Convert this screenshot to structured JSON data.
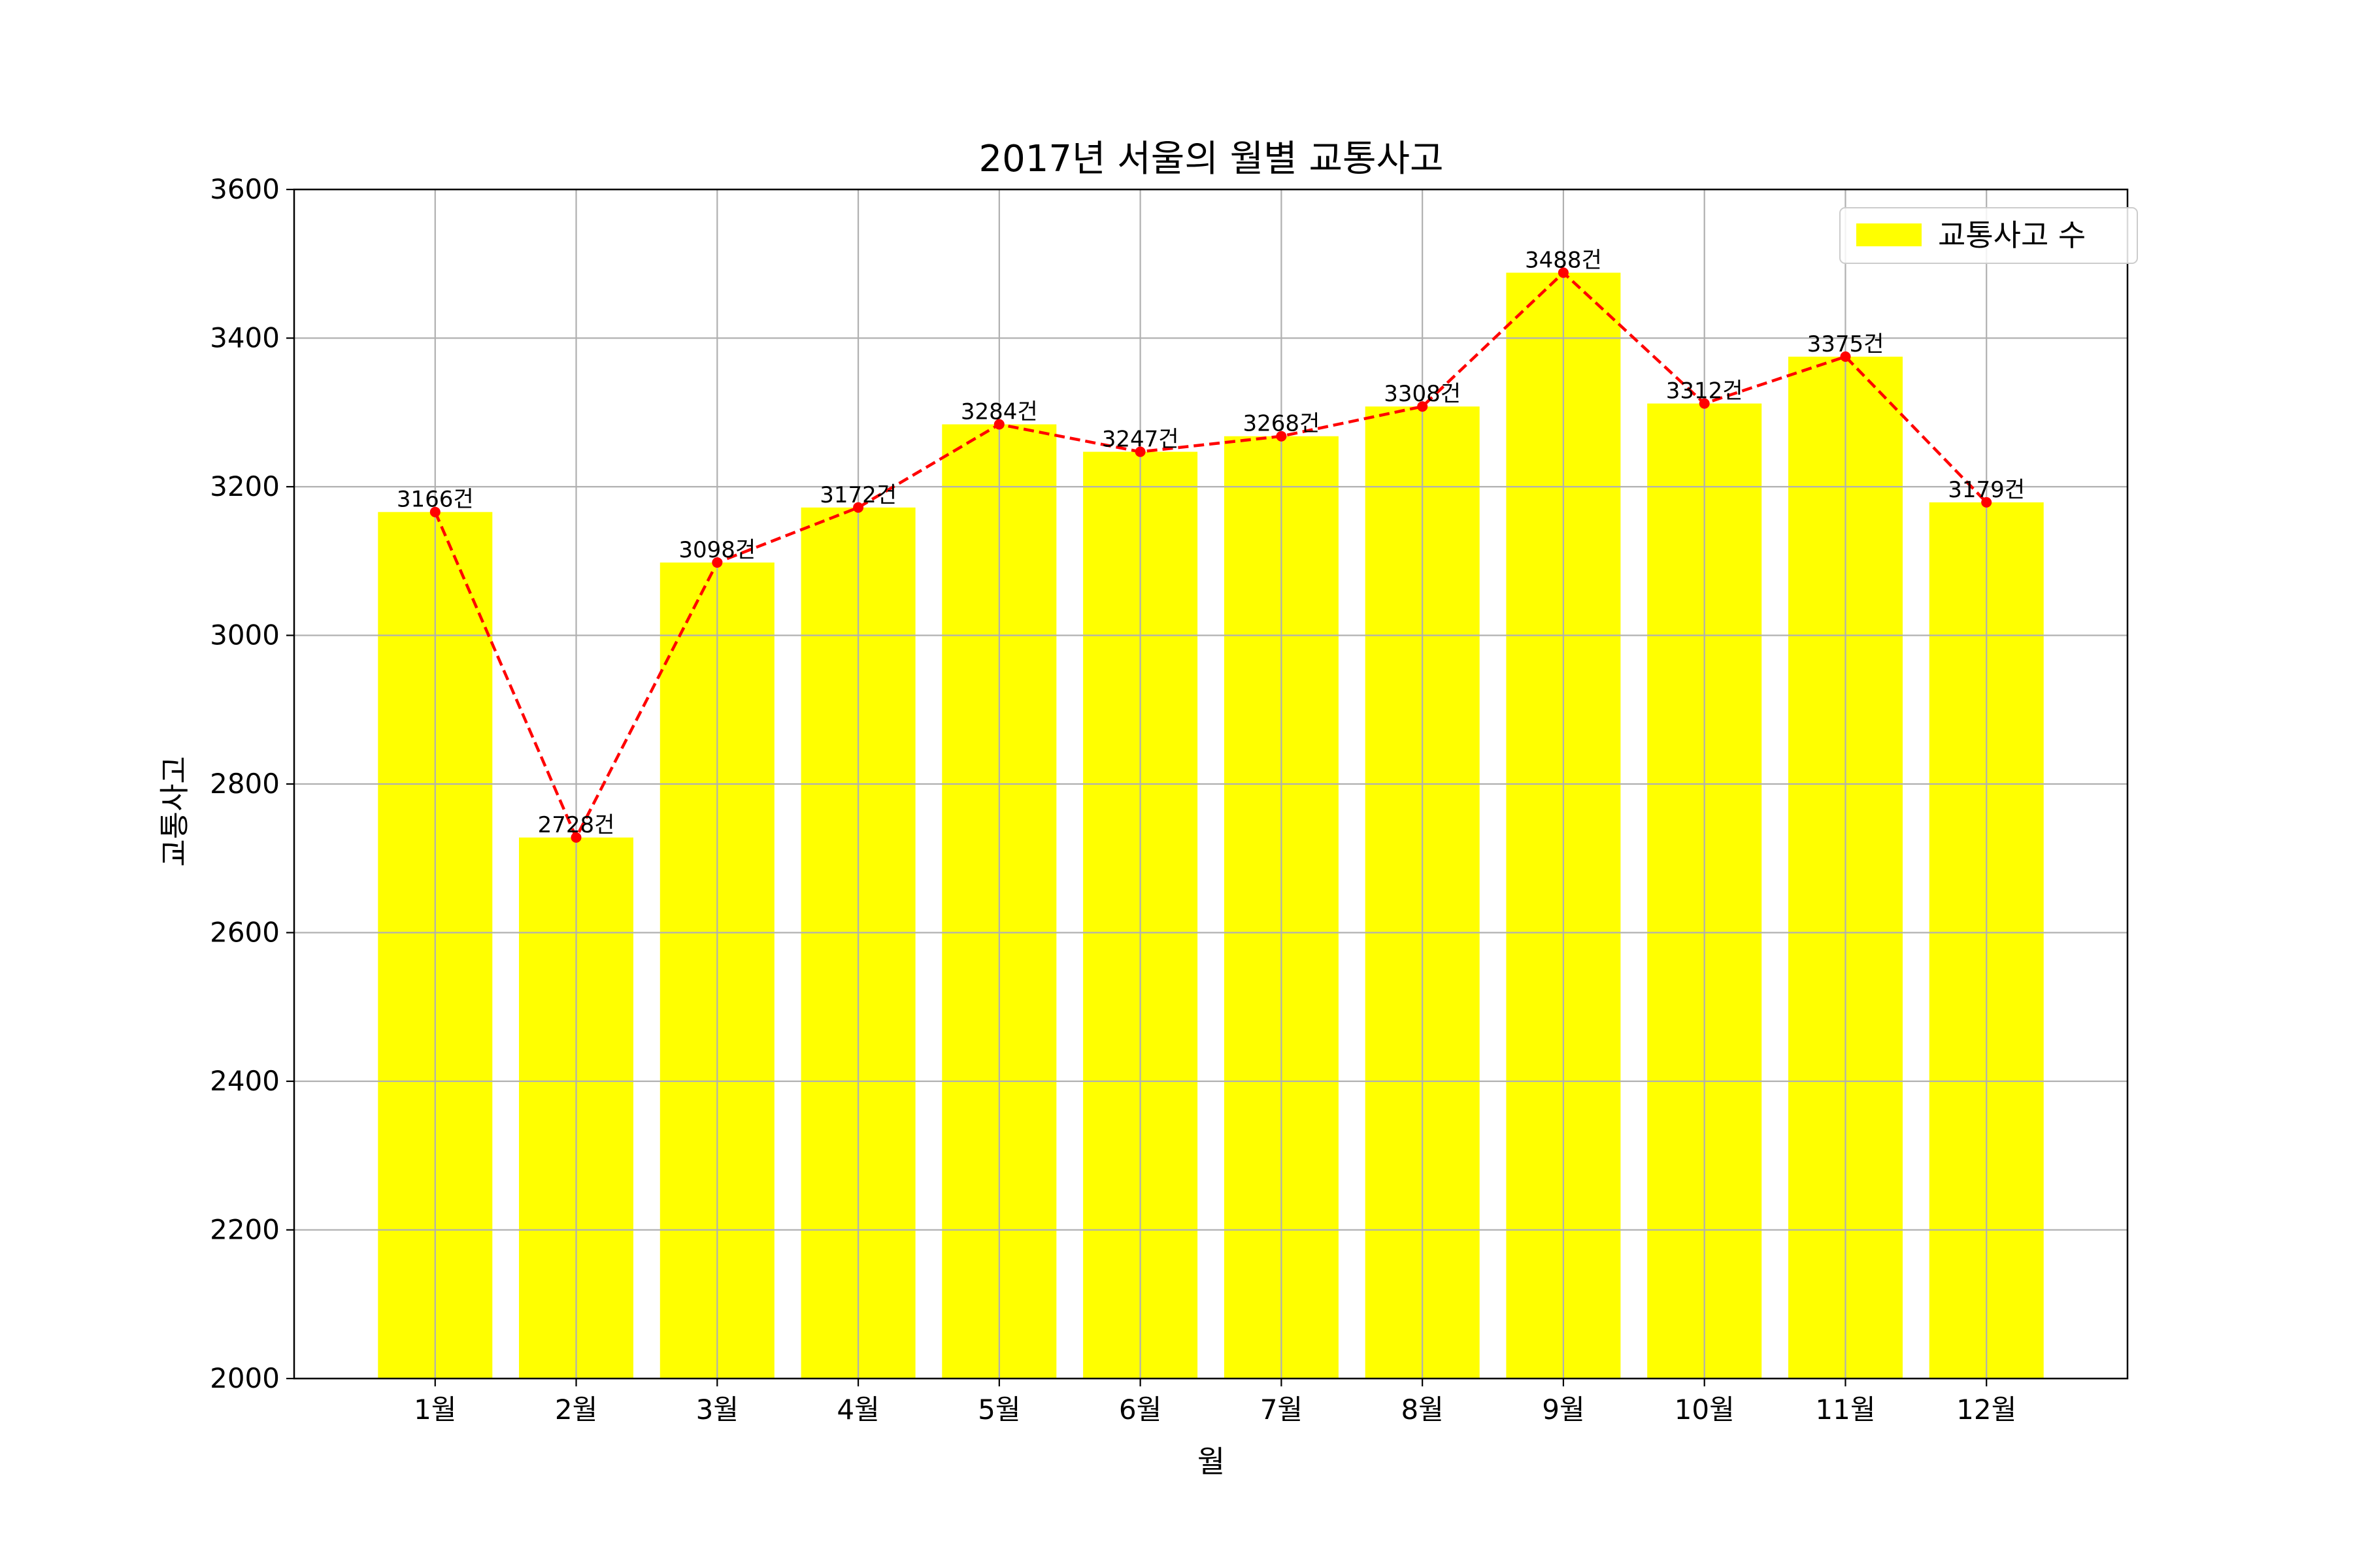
{
  "chart_data": {
    "type": "bar",
    "title": "2017년 서울의 월별 교통사고",
    "xlabel": "월",
    "ylabel": "교통사고",
    "categories": [
      "1월",
      "2월",
      "3월",
      "4월",
      "5월",
      "6월",
      "7월",
      "8월",
      "9월",
      "10월",
      "11월",
      "12월"
    ],
    "series": [
      {
        "name": "교통사고 수",
        "kind": "bar",
        "color": "#ffff00",
        "values": [
          3166,
          2728,
          3098,
          3172,
          3284,
          3247,
          3268,
          3308,
          3488,
          3312,
          3375,
          3179
        ]
      },
      {
        "kind": "line",
        "style": "dashed",
        "marker": "dot",
        "color": "#ff0000",
        "values": [
          3166,
          2728,
          3098,
          3172,
          3284,
          3247,
          3268,
          3308,
          3488,
          3312,
          3375,
          3179
        ]
      }
    ],
    "data_labels": [
      "3166건",
      "2728건",
      "3098건",
      "3172건",
      "3284건",
      "3247건",
      "3268건",
      "3308건",
      "3488건",
      "3312건",
      "3375건",
      "3179건"
    ],
    "ylim": [
      2000,
      3600
    ],
    "yticks": [
      "2000",
      "2200",
      "2400",
      "2600",
      "2800",
      "3000",
      "3200",
      "3400",
      "3600"
    ],
    "grid": true,
    "legend": "top-right",
    "colors": {
      "grid": "#b0b0b0",
      "axis": "#000000",
      "background": "#ffffff"
    }
  }
}
